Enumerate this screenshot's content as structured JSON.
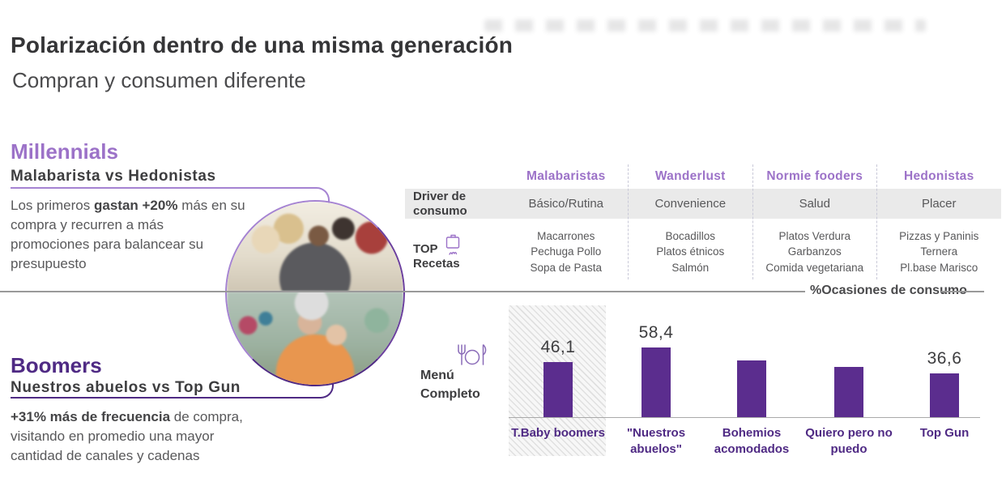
{
  "header": {
    "title": "Polarización dentro de una misma generación",
    "subtitle": "Compran y consumen diferente"
  },
  "millennials": {
    "heading": "Millennials",
    "subheading": "Malabarista vs Hedonistas",
    "body_prefix": "Los primeros ",
    "body_bold": "gastan +20%",
    "body_suffix": " más en su compra y recurren a más promociones para balancear su presupuesto"
  },
  "boomers": {
    "heading": "Boomers",
    "subheading": "Nuestros abuelos vs Top Gun",
    "body_bold": "+31% más de frecuencia",
    "body_suffix": " de compra, visitando en promedio una mayor cantidad de canales y cadenas"
  },
  "table": {
    "row_labels": {
      "driver": "Driver de consumo",
      "recetas_top": "TOP",
      "recetas_bottom": "Recetas"
    },
    "columns": [
      {
        "name": "Malabaristas",
        "driver": "Básico/Rutina",
        "recipes": [
          "Macarrones",
          "Pechuga Pollo",
          "Sopa de Pasta"
        ]
      },
      {
        "name": "Wanderlust",
        "driver": "Convenience",
        "recipes": [
          "Bocadillos",
          "Platos étnicos",
          "Salmón"
        ]
      },
      {
        "name": "Normie fooders",
        "driver": "Salud",
        "recipes": [
          "Platos Verdura",
          "Garbanzos",
          "Comida vegetariana"
        ]
      },
      {
        "name": "Hedonistas",
        "driver": "Placer",
        "recipes": [
          "Pizzas y Paninis",
          "Ternera",
          "Pl.base Marisco"
        ]
      }
    ],
    "icons": {
      "recipes_icon": "cooking-pot-icon"
    }
  },
  "menu_label": {
    "line1": "Menú",
    "line2": "Completo",
    "icon": "fork-plate-knife-icon"
  },
  "chart_data": {
    "type": "bar",
    "title": "%Ocasiones de consumo",
    "categories": [
      "T.Baby boomers",
      "\"Nuestros abuelos\"",
      "Bohemios acomodados",
      "Quiero pero no puedo",
      "Top Gun"
    ],
    "values": [
      46.1,
      58.4,
      47.5,
      42,
      36.6
    ],
    "value_labels": [
      "46,1",
      "58,4",
      "",
      "",
      "36,6"
    ],
    "values_estimated": [
      false,
      false,
      true,
      true,
      false
    ],
    "highlighted_category": "T.Baby boomers",
    "bar_color": "#5b2d8e",
    "xlabel": "",
    "ylabel": "%Ocasiones de consumo",
    "ylim": [
      0,
      65
    ],
    "grid": false,
    "legend": "none"
  },
  "colors": {
    "accent_light_purple": "#9c72c8",
    "accent_dark_purple": "#4f2a84",
    "bar_purple": "#5b2d8e",
    "row_background": "#eaeaea",
    "divider_gray": "#9a9a9a"
  }
}
